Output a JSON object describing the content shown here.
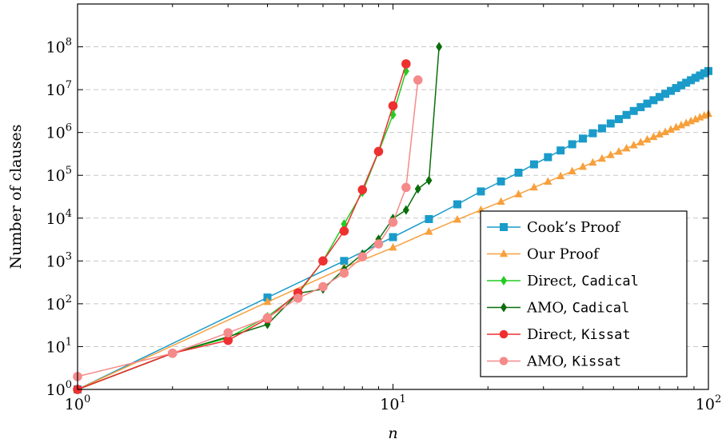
{
  "chart_data": {
    "type": "line",
    "xlabel": "n",
    "ylabel": "Number of clauses",
    "xscale": "log",
    "yscale": "log",
    "xlim": [
      1,
      100
    ],
    "ylim": [
      1,
      1000000000
    ],
    "x_ticks": [
      {
        "base": "10",
        "exp": "0",
        "value": 1
      },
      {
        "base": "10",
        "exp": "1",
        "value": 10
      },
      {
        "base": "10",
        "exp": "2",
        "value": 100
      }
    ],
    "y_ticks": [
      {
        "base": "10",
        "exp": "0",
        "value": 1
      },
      {
        "base": "10",
        "exp": "1",
        "value": 10
      },
      {
        "base": "10",
        "exp": "2",
        "value": 100
      },
      {
        "base": "10",
        "exp": "3",
        "value": 1000
      },
      {
        "base": "10",
        "exp": "4",
        "value": 10000
      },
      {
        "base": "10",
        "exp": "5",
        "value": 100000
      },
      {
        "base": "10",
        "exp": "6",
        "value": 1000000
      },
      {
        "base": "10",
        "exp": "7",
        "value": 10000000
      },
      {
        "base": "10",
        "exp": "8",
        "value": 100000000
      }
    ],
    "grid": "horizontal dashed",
    "legend_position": "bottom-right",
    "series": [
      {
        "name": "Cook’s Proof",
        "label_plain": "Cook’s Proof",
        "label_mono": "",
        "color": "#1a9bc9",
        "marker": "square",
        "x": [
          1,
          4,
          7,
          10,
          13,
          16,
          19,
          22,
          25,
          28,
          31,
          34,
          37,
          40,
          43,
          46,
          49,
          52,
          55,
          58,
          61,
          64,
          67,
          70,
          73,
          76,
          79,
          82,
          85,
          88,
          91,
          94,
          97,
          100
        ],
        "y": [
          1,
          140,
          1000,
          3600,
          9500,
          21000,
          42000,
          72000,
          115000,
          180000,
          265000,
          380000,
          530000,
          720000,
          960000,
          1250000,
          1620000,
          2050000,
          2570000,
          3180000,
          3900000,
          4720000,
          5670000,
          6750000,
          7980000,
          9360000,
          10900000,
          12600000,
          14500000,
          16600000,
          18900000,
          21400000,
          24200000,
          27200000
        ]
      },
      {
        "name": "Our Proof",
        "label_plain": "Our Proof",
        "label_mono": "",
        "color": "#f7a03c",
        "marker": "triangle",
        "x": [
          1,
          4,
          7,
          10,
          13,
          16,
          19,
          22,
          25,
          28,
          31,
          34,
          37,
          40,
          43,
          46,
          49,
          52,
          55,
          58,
          61,
          64,
          67,
          70,
          73,
          76,
          79,
          82,
          85,
          88,
          91,
          94,
          97,
          100
        ],
        "y": [
          1,
          110,
          700,
          2050,
          4800,
          9200,
          15500,
          24000,
          36000,
          52000,
          71000,
          95000,
          124000,
          158000,
          198000,
          244000,
          296000,
          356000,
          424000,
          500000,
          585000,
          680000,
          784000,
          898000,
          1020000,
          1160000,
          1310000,
          1470000,
          1640000,
          1830000,
          2030000,
          2240000,
          2470000,
          2710000
        ]
      },
      {
        "name": "Direct, Cadical",
        "label_plain": "Direct, ",
        "label_mono": "Cadical",
        "color": "#22cc22",
        "marker": "diamond",
        "x": [
          1,
          2,
          3,
          4,
          5,
          6,
          7,
          8,
          9,
          10,
          11
        ],
        "y": [
          1,
          7,
          16,
          50,
          170,
          1000,
          7300,
          40000,
          350000,
          2600000,
          27000000
        ]
      },
      {
        "name": "AMO, Cadical",
        "label_plain": "AMO, ",
        "label_mono": "Cadical",
        "color": "#0a6e0a",
        "marker": "diamond",
        "x": [
          1,
          2,
          3,
          4,
          5,
          6,
          7,
          8,
          9,
          10,
          11,
          12,
          13,
          14
        ],
        "y": [
          1,
          7,
          17,
          33,
          175,
          220,
          640,
          1450,
          3200,
          9800,
          15500,
          48000,
          76000,
          100000000
        ]
      },
      {
        "name": "Direct, Kissat",
        "label_plain": "Direct, ",
        "label_mono": "Kissat",
        "color": "#ee3030",
        "marker": "circle",
        "x": [
          1,
          2,
          3,
          4,
          5,
          6,
          7,
          8,
          9,
          10,
          11
        ],
        "y": [
          1,
          7,
          14,
          45,
          180,
          1000,
          5000,
          46000,
          360000,
          4200000,
          40000000
        ]
      },
      {
        "name": "AMO, Kissat",
        "label_plain": "AMO, ",
        "label_mono": "Kissat",
        "color": "#f58a8a",
        "marker": "circle",
        "x": [
          1,
          2,
          3,
          4,
          5,
          6,
          7,
          8,
          9,
          10,
          11,
          12
        ],
        "y": [
          2,
          7,
          21,
          47,
          135,
          250,
          520,
          1250,
          2500,
          8000,
          52000,
          16800000
        ]
      }
    ]
  }
}
